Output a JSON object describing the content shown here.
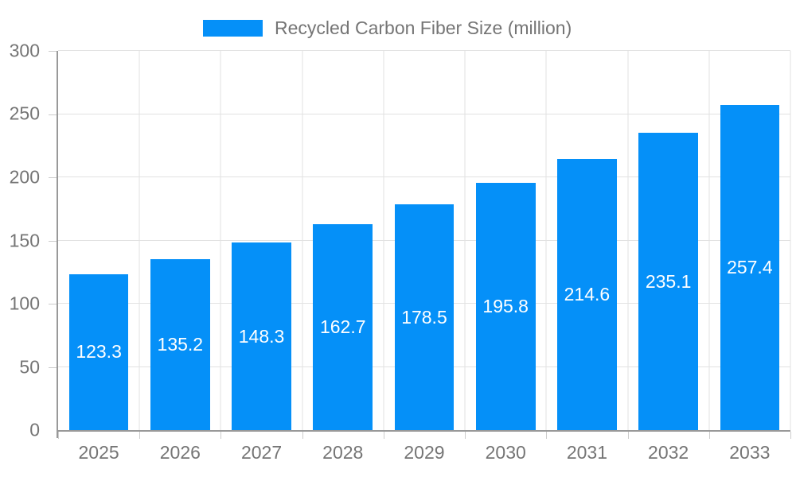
{
  "legend": {
    "label": "Recycled Carbon Fiber Size (million)"
  },
  "colors": {
    "bar": "#0590F8",
    "axis_text": "#757575",
    "bar_label_text": "#FFFFFF",
    "gridline": "#E2E2E2",
    "axis_line": "#999999",
    "tick_mark": "#CCCCCC",
    "background": "#FFFFFF"
  },
  "chart_data": {
    "type": "bar",
    "categories": [
      "2025",
      "2026",
      "2027",
      "2028",
      "2029",
      "2030",
      "2031",
      "2032",
      "2033"
    ],
    "series": [
      {
        "name": "Recycled Carbon Fiber Size (million)",
        "values": [
          123.3,
          135.2,
          148.3,
          162.7,
          178.5,
          195.8,
          214.6,
          235.1,
          257.4
        ]
      }
    ],
    "xlabel": "",
    "ylabel": "",
    "ylim": [
      0,
      300
    ],
    "yticks": [
      0,
      50,
      100,
      150,
      200,
      250,
      300
    ],
    "grid": true,
    "legend_position": "top-center",
    "bar_label_position": "inside-center",
    "bar_label_format": "one-decimal"
  }
}
